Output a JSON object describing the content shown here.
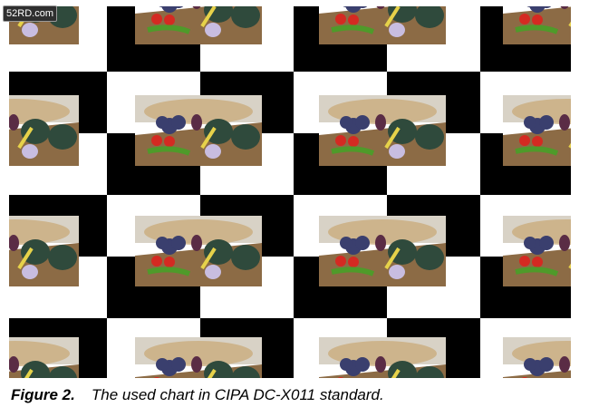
{
  "watermark": {
    "text": "52RD.com"
  },
  "figure": {
    "grid": {
      "columns": 6,
      "rows": 6,
      "first_cell": "white"
    },
    "photos": {
      "rows": 4,
      "columns": 4
    },
    "colors": {
      "black": "#000000",
      "white": "#ffffff",
      "basket": "#c9a978",
      "grapes": "#3a3f6e",
      "tomato": "#d42a22",
      "squash": "#2f4a3c",
      "eggplant": "#5a2c45",
      "onion": "#c8bde0",
      "pepper": "#4f9a2a",
      "tray": "#8c6b45"
    }
  },
  "caption": {
    "label": "Figure 2.",
    "text": "The used chart in CIPA DC-X011 standard."
  }
}
